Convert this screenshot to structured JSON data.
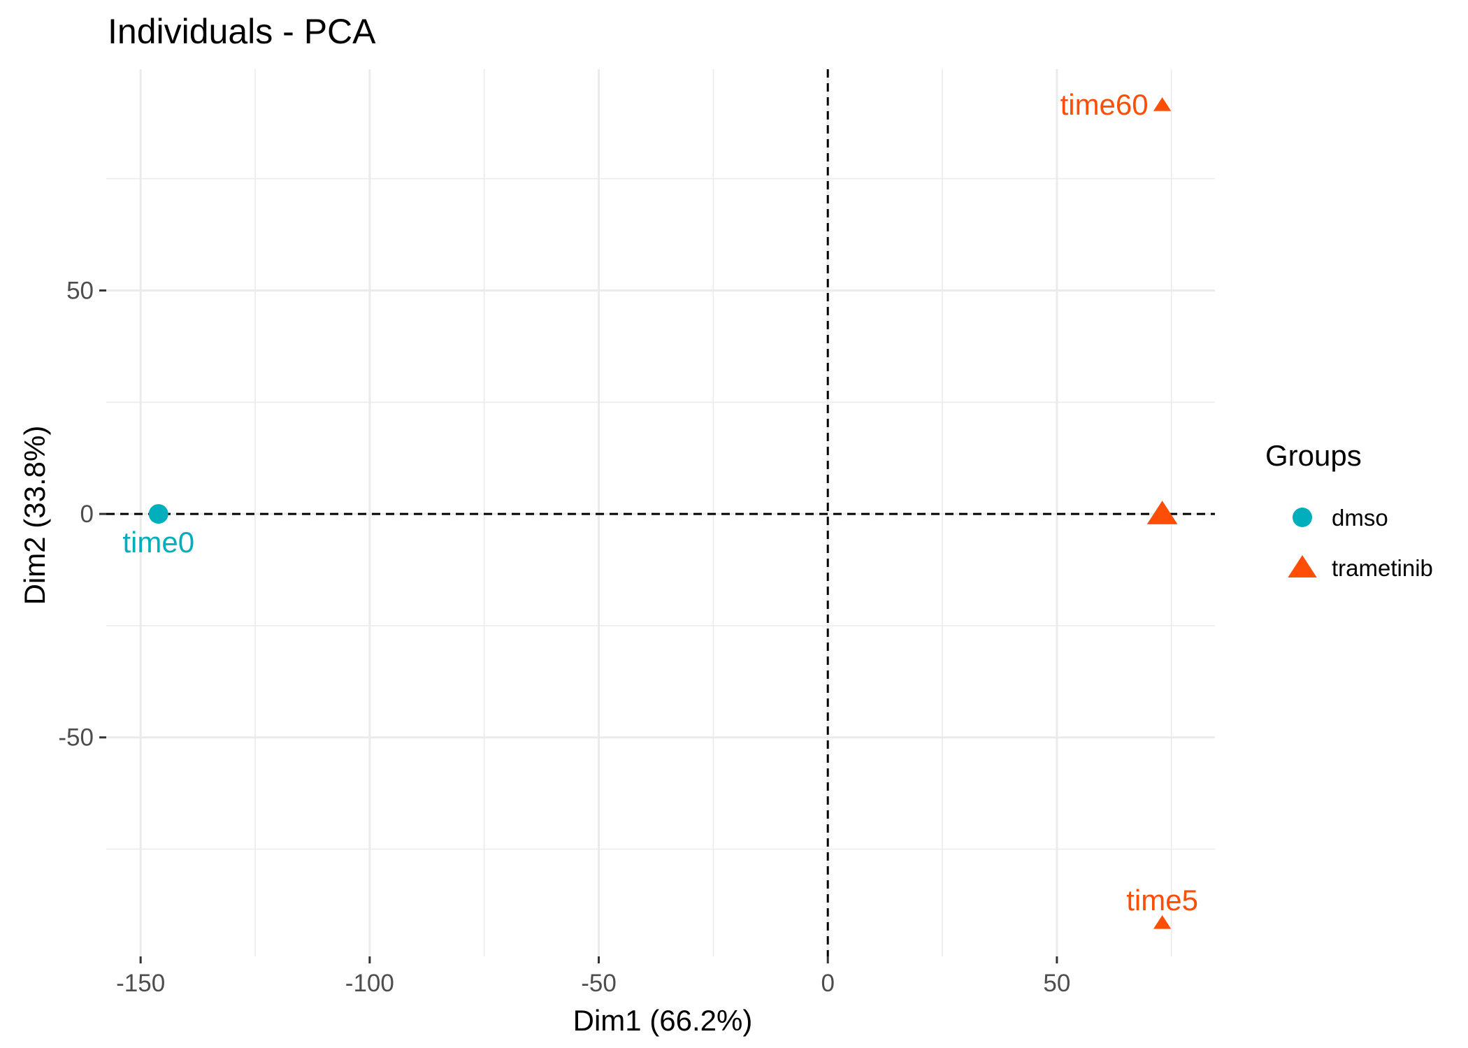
{
  "chart_data": {
    "type": "scatter",
    "title": "Individuals - PCA",
    "xlabel": "Dim1 (66.2%)",
    "ylabel": "Dim2 (33.8%)",
    "xlim": [
      -157.5,
      84.5
    ],
    "ylim": [
      -99,
      99.5
    ],
    "x_ticks": [
      -150,
      -100,
      -50,
      0,
      50
    ],
    "x_tick_labels": [
      "-150",
      "-100",
      "-50",
      "0",
      "50"
    ],
    "y_ticks": [
      -50,
      0,
      50
    ],
    "y_tick_labels": [
      "-50",
      "0",
      "50"
    ],
    "x_minor_grid": [
      -125,
      -75,
      -25,
      25,
      75
    ],
    "y_minor_grid": [
      -75,
      -25,
      25,
      75
    ],
    "reference_lines": {
      "x": 0,
      "y": 0
    },
    "grid": true,
    "legend": {
      "title": "Groups",
      "position": "right",
      "entries": [
        {
          "label": "dmso",
          "shape": "circle",
          "color": "#00AFBB"
        },
        {
          "label": "trametinib",
          "shape": "triangle",
          "color": "#FC4E07"
        }
      ]
    },
    "points": [
      {
        "label": "time0",
        "group": "dmso",
        "x": -146.1,
        "y": 0,
        "shape": "circle",
        "color": "#00AFBB"
      },
      {
        "label": "time60",
        "group": "trametinib",
        "x": 73.0,
        "y": 91.5,
        "shape": "triangle",
        "color": "#FC4E07"
      },
      {
        "label": "time5",
        "group": "trametinib",
        "x": 73.0,
        "y": -91.5,
        "shape": "triangle",
        "color": "#FC4E07"
      }
    ],
    "group_means": [
      {
        "group": "dmso",
        "x": -146.1,
        "y": 0,
        "shape": "circle",
        "color": "#00AFBB"
      },
      {
        "group": "trametinib",
        "x": 73.0,
        "y": 0,
        "shape": "triangle",
        "color": "#FC4E07"
      }
    ]
  }
}
